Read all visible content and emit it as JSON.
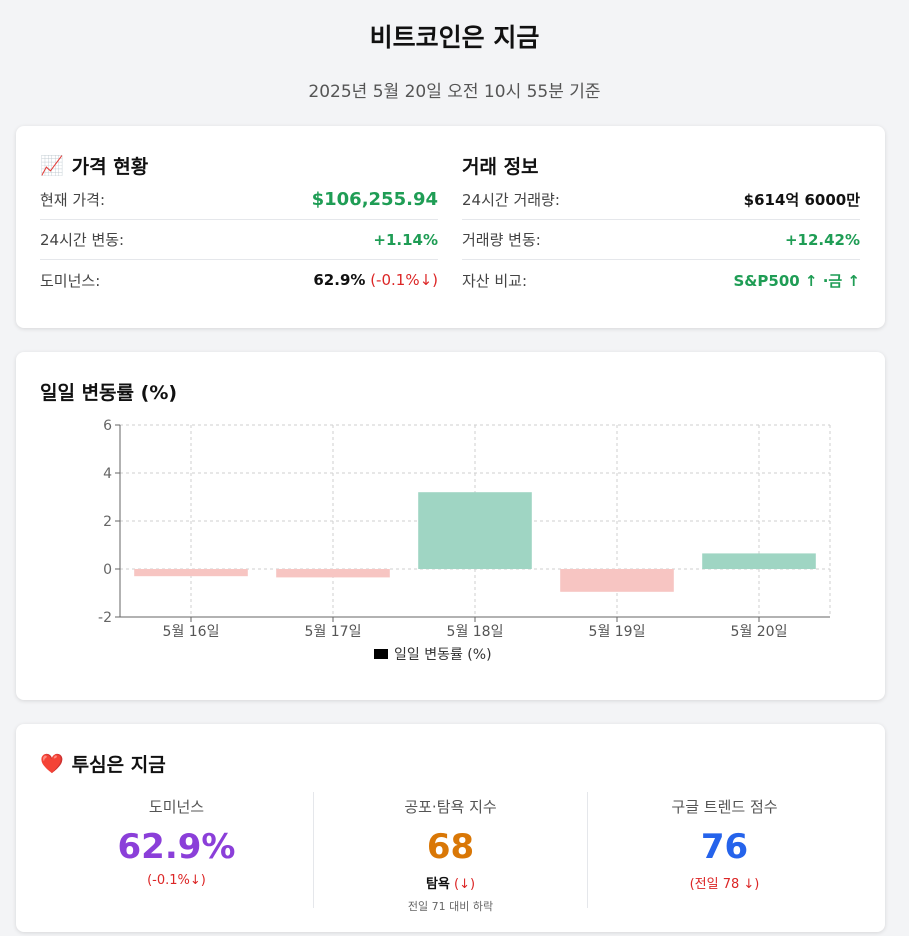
{
  "header": {
    "title": "비트코인은 지금",
    "subtitle": "2025년 5월 20일 오전 10시 55분 기준"
  },
  "price_card": {
    "icon": "chart-increasing-icon",
    "title": "가격 현황",
    "rows": [
      {
        "label": "현재 가격:",
        "value": "$106,255.94"
      },
      {
        "label": "24시간 변동:",
        "value": "+1.14%"
      },
      {
        "label": "도미넌스:",
        "value": "62.9%",
        "change": "(-0.1%↓)"
      }
    ]
  },
  "trade_card": {
    "title": "거래 정보",
    "rows": [
      {
        "label": "24시간 거래량:",
        "value": "$614억 6000만"
      },
      {
        "label": "거래량 변동:",
        "value": "+12.42%"
      },
      {
        "label": "자산 비교:",
        "value": "S&P500 ↑ ·금 ↑"
      }
    ]
  },
  "chart_section": {
    "title": "일일 변동률 (%)"
  },
  "chart_data": {
    "type": "bar",
    "categories": [
      "5월 16일",
      "5월 17일",
      "5월 18일",
      "5월 19일",
      "5월 20일"
    ],
    "series": [
      {
        "name": "일일 변동률 (%)",
        "values": [
          -0.3,
          -0.35,
          3.2,
          -0.95,
          0.65
        ]
      }
    ],
    "ylim": [
      -2,
      6
    ],
    "yticks": [
      -2,
      0,
      2,
      4,
      6
    ],
    "grid": true,
    "legend_position": "bottom",
    "colors": {
      "positive": "#9fd5c3",
      "negative": "#f7c5c2",
      "legend": "#000000"
    }
  },
  "sentiment": {
    "icon": "heart-icon",
    "title": "투심은 지금",
    "dominance": {
      "label": "도미넌스",
      "value": "62.9%",
      "change": "(-0.1%↓)"
    },
    "fear_greed": {
      "label": "공포·탐욕 지수",
      "value": "68",
      "state": "탐욕",
      "change": "(↓)",
      "note": "전일 71 대비 하락"
    },
    "google_trends": {
      "label": "구글 트렌드 점수",
      "value": "76",
      "change": "(전일 78 ↓)"
    }
  }
}
